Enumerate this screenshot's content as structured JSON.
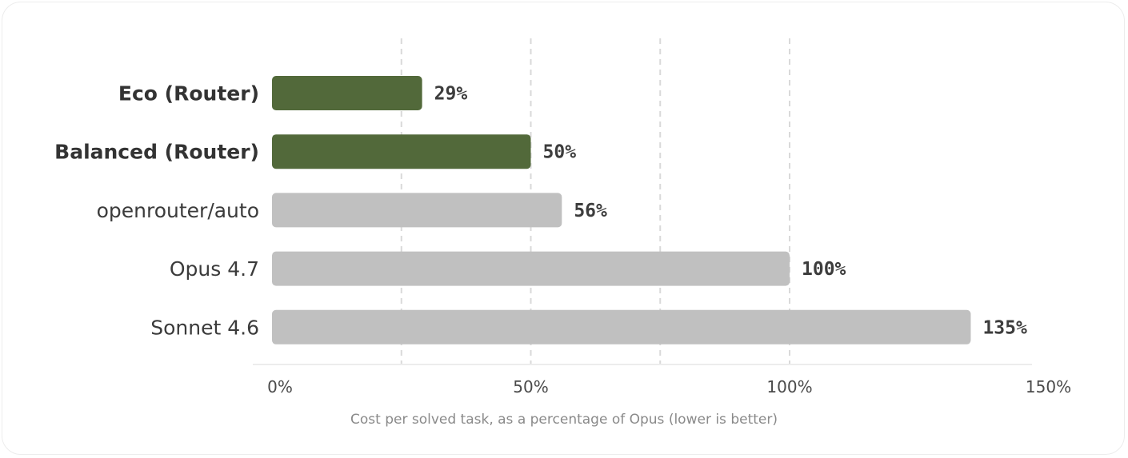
{
  "chart_data": {
    "type": "bar",
    "orientation": "horizontal",
    "categories": [
      "Eco (Router)",
      "Balanced (Router)",
      "openrouter/auto",
      "Opus 4.7",
      "Sonnet 4.6"
    ],
    "values": [
      29,
      50,
      56,
      100,
      135
    ],
    "value_labels": [
      "29%",
      "50%",
      "56%",
      "100%",
      "135%"
    ],
    "highlighted": [
      true,
      true,
      false,
      false,
      false
    ],
    "xlabel": "Cost per solved task, as a percentage of Opus (lower is better)",
    "xlim": [
      0,
      150
    ],
    "xticks": [
      0,
      50,
      100,
      150
    ],
    "xtick_labels": [
      "0%",
      "50%",
      "100%",
      "150%"
    ],
    "gridlines": [
      25,
      50,
      75,
      100
    ],
    "grid": true,
    "colors": {
      "highlight": "#52693a",
      "default": "#c0c0c0",
      "grid": "#d9d9d9"
    }
  }
}
